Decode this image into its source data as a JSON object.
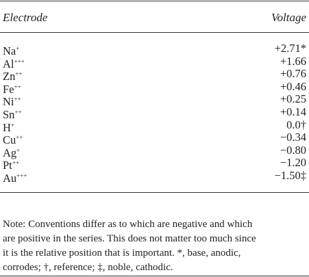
{
  "table": {
    "header": [
      "Electrode",
      "Voltage"
    ],
    "rows": [
      {
        "symbol": "Na",
        "charge": "+",
        "voltage": "+2.71*"
      },
      {
        "symbol": "Al",
        "charge": "+++",
        "voltage": "+1.66"
      },
      {
        "symbol": "Zn",
        "charge": "++",
        "voltage": "+0.76"
      },
      {
        "symbol": "Fe",
        "charge": "++",
        "voltage": "+0.46"
      },
      {
        "symbol": "Ni",
        "charge": "++",
        "voltage": "+0.25"
      },
      {
        "symbol": "Sn",
        "charge": "++",
        "voltage": "+0.14"
      },
      {
        "symbol": "H",
        "charge": "+",
        "voltage": "0.0†"
      },
      {
        "symbol": "Cu",
        "charge": "++",
        "voltage": "−0.34"
      },
      {
        "symbol": "Ag",
        "charge": "+",
        "voltage": "−0.80"
      },
      {
        "symbol": "Pt",
        "charge": "++",
        "voltage": "−1.20"
      },
      {
        "symbol": "Au",
        "charge": "+++",
        "voltage": "−1.50‡"
      }
    ]
  },
  "note": [
    "Note: Conventions differ as to which are negative and which",
    "are positive in the series. This does not matter too much since",
    "it is the relative position that is important. *, base, anodic,",
    "corrodes; †, reference; ‡, noble, cathodic."
  ]
}
